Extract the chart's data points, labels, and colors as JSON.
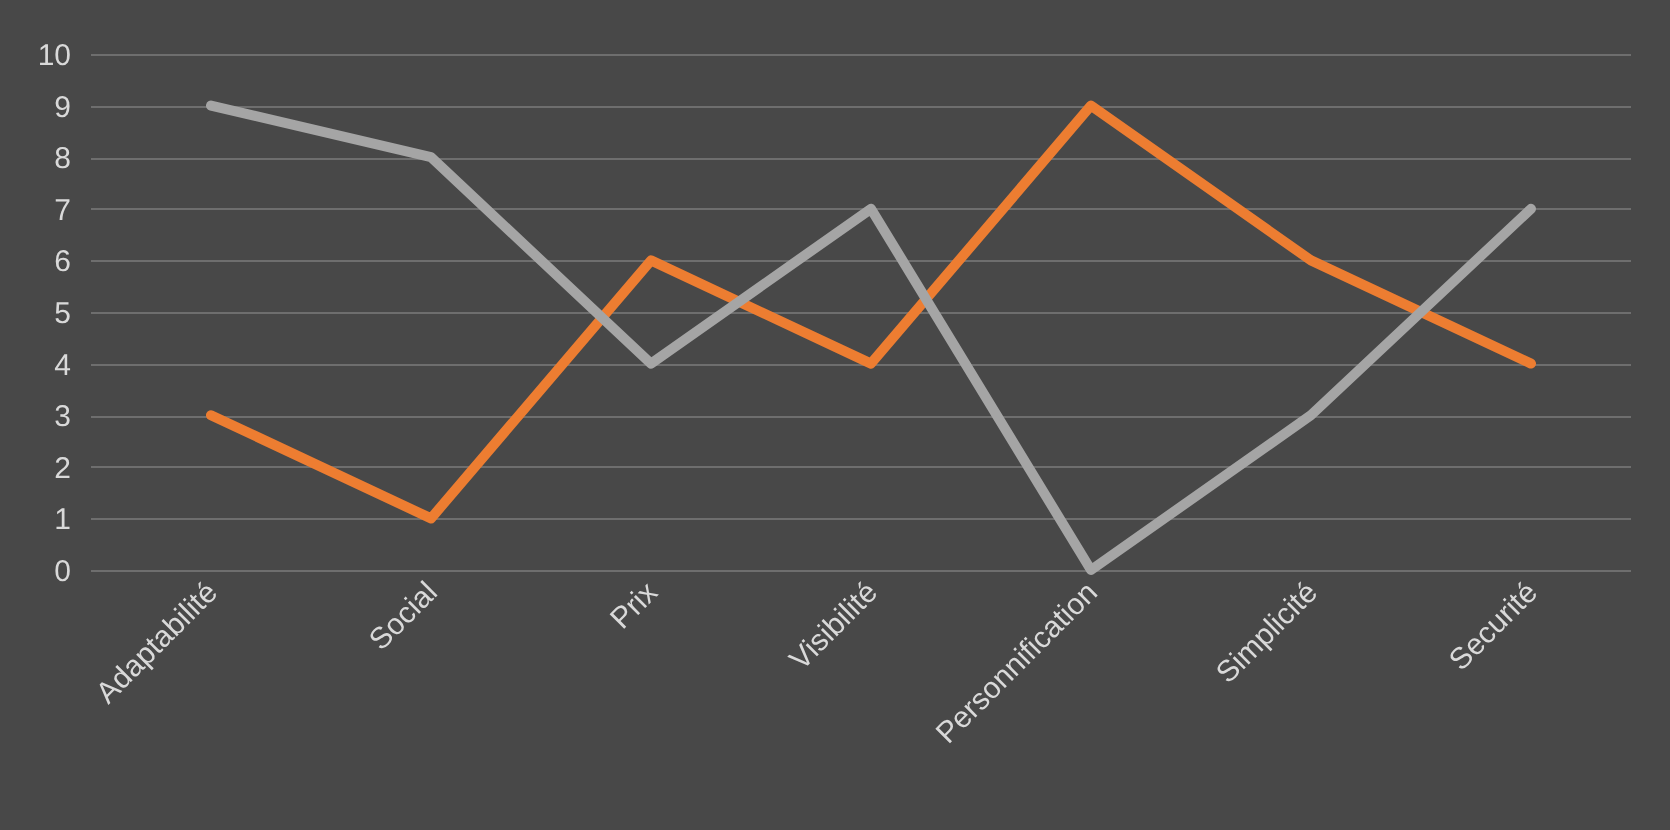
{
  "chart_data": {
    "type": "line",
    "categories": [
      "Adaptabilité",
      "Social",
      "Prix",
      "Visibilité",
      "Personnification",
      "Simplicité",
      "Securité"
    ],
    "series": [
      {
        "color": "#ed7d31",
        "values": [
          3,
          1,
          6,
          4,
          9,
          6,
          4
        ]
      },
      {
        "color": "#a5a5a5",
        "values": [
          9,
          8,
          4,
          7,
          0,
          3,
          7
        ]
      }
    ],
    "ylim": [
      0,
      10
    ],
    "yticks": [
      0,
      1,
      2,
      3,
      4,
      5,
      6,
      7,
      8,
      9,
      10
    ],
    "grid": "y"
  }
}
